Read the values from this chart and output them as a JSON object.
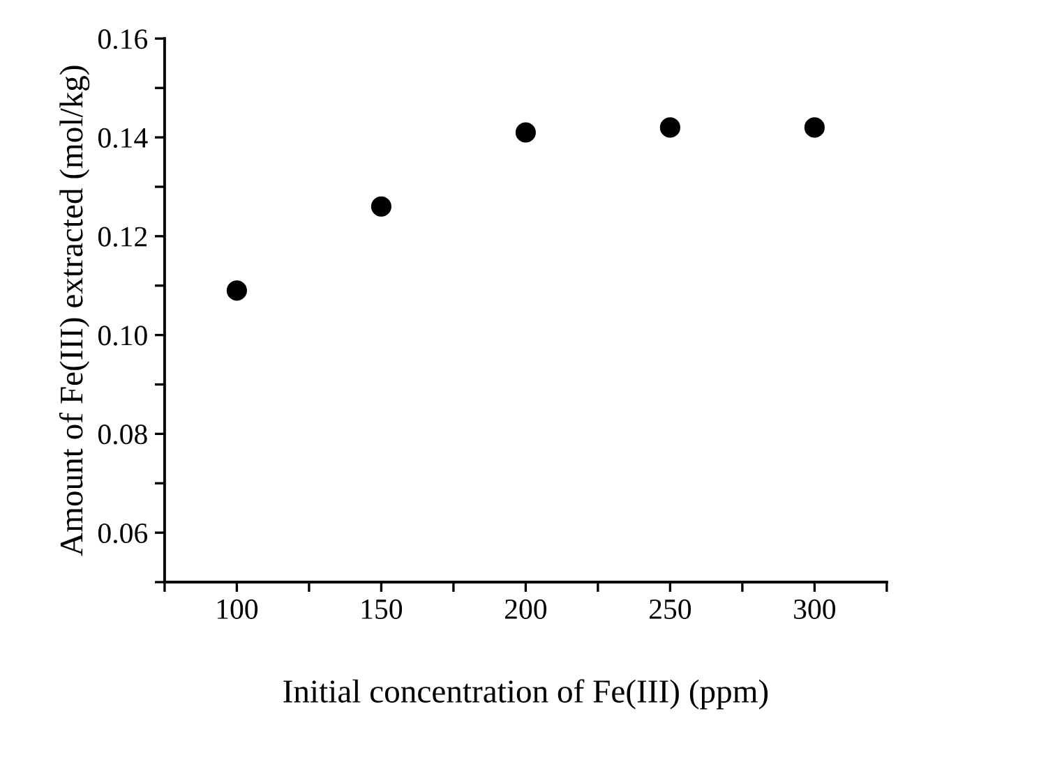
{
  "chart_data": {
    "type": "scatter",
    "xlabel": "Initial concentration of Fe(III) (ppm)",
    "ylabel": "Amount of Fe(III) extracted (mol/kg)",
    "x": [
      100,
      150,
      200,
      250,
      300
    ],
    "series": [
      {
        "color": "#000000",
        "values": [
          0.109,
          0.126,
          0.141,
          0.142,
          0.142
        ]
      }
    ],
    "xlim": [
      75,
      325
    ],
    "xticks": [
      {
        "value": 75,
        "label": null
      },
      100,
      {
        "value": 125,
        "label": null
      },
      150,
      {
        "value": 175,
        "label": null
      },
      200,
      {
        "value": 225,
        "label": null
      },
      250,
      {
        "value": 275,
        "label": null
      },
      300,
      {
        "value": 325,
        "label": null
      }
    ],
    "ylim": [
      0.05,
      0.16
    ],
    "yticks": [
      {
        "value": 0.05,
        "label": null
      },
      {
        "value": 0.06,
        "label": "0.06"
      },
      {
        "value": 0.07,
        "label": null
      },
      {
        "value": 0.08,
        "label": "0.08"
      },
      {
        "value": 0.09,
        "label": null
      },
      {
        "value": 0.1,
        "label": "0.10"
      },
      {
        "value": 0.11,
        "label": null
      },
      {
        "value": 0.12,
        "label": "0.12"
      },
      {
        "value": 0.13,
        "label": null
      },
      {
        "value": 0.14,
        "label": "0.14"
      },
      {
        "value": 0.15,
        "label": null
      },
      {
        "value": 0.16,
        "label": "0.16"
      }
    ],
    "marker": "circle"
  }
}
